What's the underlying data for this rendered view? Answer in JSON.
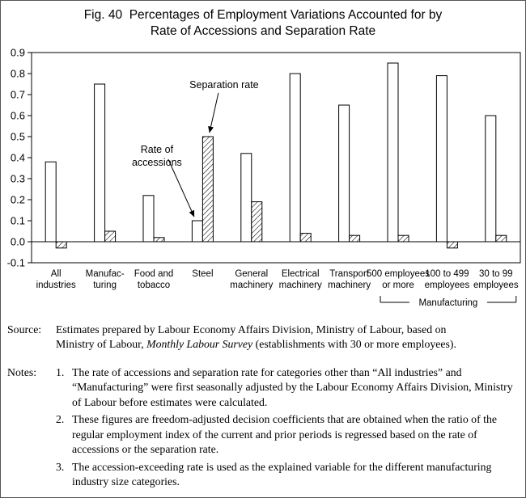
{
  "title": {
    "line1": "Fig. 40  Percentages of Employment Variations Accounted for by",
    "line2": "Rate of Accessions and Separation Rate"
  },
  "chart_data": {
    "type": "bar",
    "categories": [
      [
        "All",
        "industries"
      ],
      [
        "Manufac-",
        "turing"
      ],
      [
        "Food and",
        "tobacco"
      ],
      [
        "Steel"
      ],
      [
        "General",
        "machinery"
      ],
      [
        "Electrical",
        "machinery"
      ],
      [
        "Transport",
        "machinery"
      ],
      [
        "500 employees",
        "or more"
      ],
      [
        "100 to 499",
        "employees"
      ],
      [
        "30 to 99",
        "employees"
      ]
    ],
    "series": [
      {
        "name": "Rate of accessions",
        "style": "open",
        "values": [
          0.38,
          0.75,
          0.22,
          0.1,
          0.42,
          0.8,
          0.65,
          0.85,
          0.79,
          0.6
        ]
      },
      {
        "name": "Separation rate",
        "style": "hatched",
        "values": [
          -0.03,
          0.05,
          0.02,
          0.5,
          0.19,
          0.04,
          0.03,
          0.03,
          -0.03,
          0.03
        ]
      }
    ],
    "ylim": [
      -0.1,
      0.9
    ],
    "ytick_step": 0.1,
    "grid": false,
    "legend": "none",
    "annotations": [
      {
        "text": [
          "Separation rate"
        ],
        "target_series": 1,
        "target_category": 3
      },
      {
        "text": [
          "Rate of",
          "accessions"
        ],
        "target_series": 0,
        "target_category": 3
      }
    ],
    "group_bracket": {
      "label": "Manufacturing",
      "from_category": 7,
      "to_category": 9
    }
  },
  "source": {
    "label": "Source:",
    "line1": "Estimates prepared by Labour Economy Affairs Division, Ministry of Labour, based on",
    "line2_pre": "Ministry of Labour, ",
    "line2_italic": "Monthly Labour Survey",
    "line2_post": " (establishments with 30 or more employees)."
  },
  "notes": {
    "label": "Notes:",
    "items": [
      {
        "num": "1.",
        "text": "The rate of accessions and separation rate for categories other than “All industries” and “Manufacturing” were first seasonally adjusted by the Labour Economy Affairs Division, Ministry of Labour before estimates were calculated."
      },
      {
        "num": "2.",
        "text": "These figures are freedom-adjusted decision coefficients that are obtained when the ratio of the regular employment index of the current and prior periods is regressed based on the rate of accessions or the separation rate."
      },
      {
        "num": "3.",
        "text": "The accession-exceeding rate is used as the explained variable for the different manufacturing industry size categories."
      }
    ]
  }
}
